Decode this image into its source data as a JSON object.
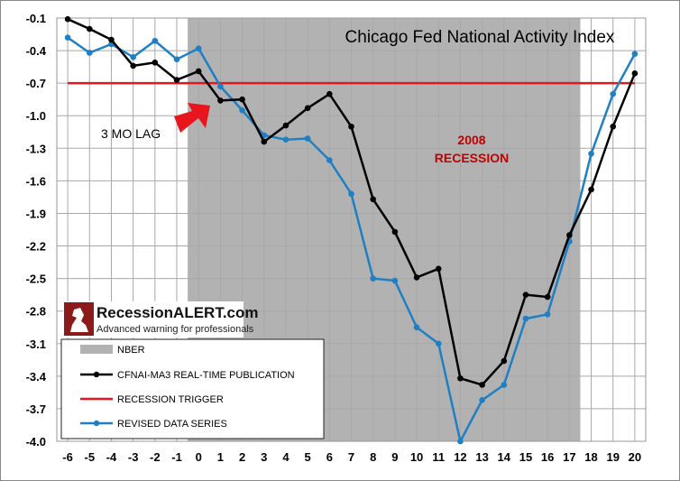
{
  "chart_data": {
    "type": "line",
    "title": "Chicago Fed National Activity Index",
    "x": [
      -6,
      -5,
      -4,
      -3,
      -2,
      -1,
      0,
      1,
      2,
      3,
      4,
      5,
      6,
      7,
      8,
      9,
      10,
      11,
      12,
      13,
      14,
      15,
      16,
      17,
      18,
      19,
      20
    ],
    "xticks": [
      "-6",
      "-5",
      "-4",
      "-3",
      "-2",
      "-1",
      "0",
      "1",
      "2",
      "3",
      "4",
      "5",
      "6",
      "7",
      "8",
      "9",
      "10",
      "11",
      "12",
      "13",
      "14",
      "15",
      "16",
      "17",
      "18",
      "19",
      "20"
    ],
    "ylim": [
      -4.0,
      -0.1
    ],
    "yticks": [
      "-0.1",
      "-0.4",
      "-0.7",
      "-1.0",
      "-1.3",
      "-1.6",
      "-1.9",
      "-2.2",
      "-2.5",
      "-2.8",
      "-3.1",
      "-3.4",
      "-3.7",
      "-4.0"
    ],
    "recession_shade": {
      "name": "NBER",
      "x_start": -0.5,
      "x_end": 17.5,
      "color": "#b2b2b2"
    },
    "series": [
      {
        "name": "CFNAI-MA3 REAL-TIME PUBLICATION",
        "color": "#000000",
        "values": [
          -0.11,
          -0.2,
          -0.3,
          -0.54,
          -0.51,
          -0.67,
          -0.59,
          -0.86,
          -0.85,
          -1.24,
          -1.09,
          -0.93,
          -0.8,
          -1.1,
          -1.77,
          -2.07,
          -2.49,
          -2.41,
          -3.42,
          -3.48,
          -3.26,
          -2.65,
          -2.67,
          -2.1,
          -1.68,
          -1.1,
          -0.61
        ]
      },
      {
        "name": "REVISED DATA SERIES",
        "color": "#1f7fc4",
        "values": [
          -0.28,
          -0.42,
          -0.34,
          -0.46,
          -0.31,
          -0.48,
          -0.38,
          -0.73,
          -0.95,
          -1.18,
          -1.22,
          -1.21,
          -1.41,
          -1.72,
          -2.5,
          -2.52,
          -2.95,
          -3.1,
          -4.0,
          -3.62,
          -3.48,
          -2.87,
          -2.83,
          -2.16,
          -1.35,
          -0.8,
          -0.43
        ]
      }
    ],
    "trigger": {
      "name": "RECESSION TRIGGER",
      "value": -0.7,
      "color": "#e8161c"
    },
    "annotations": {
      "lag_label": "3 MO LAG",
      "recession_label_line1": "2008",
      "recession_label_line2": "RECESSION"
    },
    "legend": [
      "NBER",
      "CFNAI-MA3 REAL-TIME PUBLICATION",
      "RECESSION TRIGGER",
      "REVISED DATA SERIES"
    ]
  },
  "logo": {
    "brand": "RecessionALERT.com",
    "tagline": "Advanced warning for professionals"
  }
}
